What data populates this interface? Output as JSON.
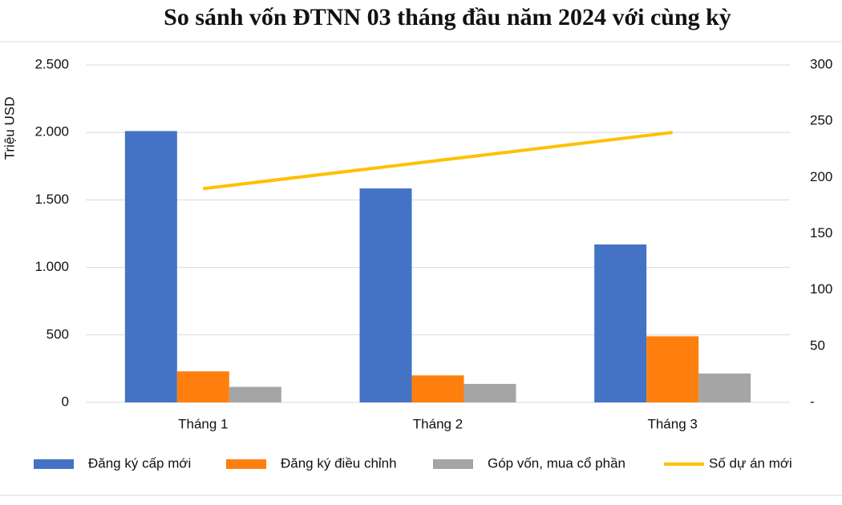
{
  "chart_data": {
    "type": "bar",
    "title": "So sánh vốn ĐTNN 03 tháng đầu năm 2024 với cùng kỳ",
    "y_label": "Triệu USD",
    "categories": [
      "Tháng 1",
      "Tháng 2",
      "Tháng 3"
    ],
    "series": [
      {
        "name": "Đăng ký cấp mới",
        "type": "bar",
        "color": "#4472c4",
        "values": [
          2010,
          1585,
          1170
        ]
      },
      {
        "name": "Đăng ký điều chỉnh",
        "type": "bar",
        "color": "#ff7f0e",
        "values": [
          230,
          200,
          490
        ]
      },
      {
        "name": "Góp vốn, mua cổ phần",
        "type": "bar",
        "color": "#a5a5a5",
        "values": [
          115,
          137,
          214
        ]
      },
      {
        "name": "Số dự án mới",
        "type": "line",
        "axis": "y2",
        "color": "#ffc000",
        "values": [
          190,
          215,
          240
        ]
      }
    ],
    "ylim": [
      0,
      2500
    ],
    "yticks": [
      0,
      500,
      {
        "value": 1000,
        "label": "1.000"
      },
      {
        "value": 1500,
        "label": "1.500"
      },
      {
        "value": 2000,
        "label": "2.000"
      },
      {
        "value": 2500,
        "label": "2.500"
      }
    ],
    "y2lim": [
      0,
      300
    ],
    "y2ticks": [
      {
        "value": 0,
        "label": "-"
      },
      50,
      100,
      150,
      200,
      250,
      300
    ],
    "grid": true,
    "legend": "bottom"
  }
}
